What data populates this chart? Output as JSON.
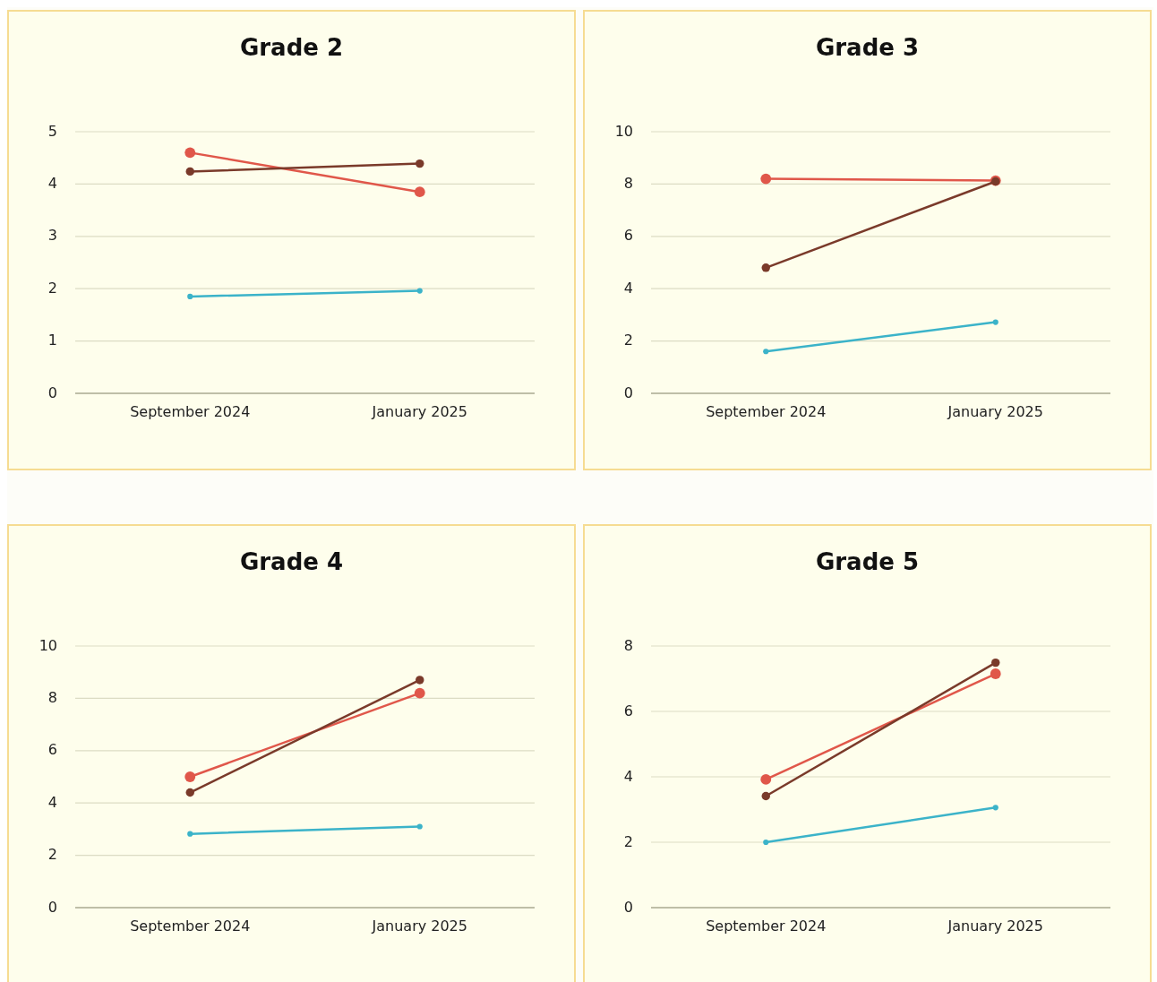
{
  "chart_data": [
    {
      "type": "line",
      "title": "Grade 2",
      "categories": [
        "September 2024",
        "January 2025"
      ],
      "ylim": [
        0,
        5
      ],
      "yticks": [
        0,
        1,
        2,
        3,
        4,
        5
      ],
      "grid": "y",
      "marker": "circle",
      "line_style": "solid",
      "series": [
        {
          "color": "#e0574a",
          "values": [
            4.6,
            3.85
          ]
        },
        {
          "color": "#7a3a2a",
          "values": [
            4.24,
            4.39
          ]
        },
        {
          "color": "#3bb3c9",
          "values": [
            1.85,
            1.96
          ]
        }
      ]
    },
    {
      "type": "line",
      "title": "Grade 3",
      "categories": [
        "September 2024",
        "January 2025"
      ],
      "ylim": [
        0,
        10
      ],
      "yticks": [
        0,
        2,
        4,
        6,
        8,
        10
      ],
      "grid": "y",
      "marker": "circle",
      "line_style": "solid",
      "series": [
        {
          "color": "#e0574a",
          "values": [
            8.2,
            8.13
          ]
        },
        {
          "color": "#7a3a2a",
          "values": [
            4.8,
            8.1
          ]
        },
        {
          "color": "#3bb3c9",
          "values": [
            1.6,
            2.72
          ]
        }
      ]
    },
    {
      "type": "line",
      "title": "Grade 4",
      "categories": [
        "September 2024",
        "January 2025"
      ],
      "ylim": [
        0,
        10
      ],
      "yticks": [
        0,
        2,
        4,
        6,
        8,
        10
      ],
      "grid": "y",
      "marker": "circle",
      "line_style": "solid",
      "series": [
        {
          "color": "#e0574a",
          "values": [
            5.0,
            8.2
          ]
        },
        {
          "color": "#7a3a2a",
          "values": [
            4.4,
            8.7
          ]
        },
        {
          "color": "#3bb3c9",
          "values": [
            2.82,
            3.1
          ]
        }
      ]
    },
    {
      "type": "line",
      "title": "Grade 5",
      "categories": [
        "September 2024",
        "January 2025"
      ],
      "ylim": [
        0,
        8
      ],
      "yticks": [
        0,
        2,
        4,
        6,
        8
      ],
      "grid": "y",
      "marker": "circle",
      "line_style": "solid",
      "series": [
        {
          "color": "#e0574a",
          "values": [
            3.92,
            7.15
          ]
        },
        {
          "color": "#7a3a2a",
          "values": [
            3.41,
            7.49
          ]
        },
        {
          "color": "#3bb3c9",
          "values": [
            2.0,
            3.06
          ]
        }
      ]
    }
  ]
}
